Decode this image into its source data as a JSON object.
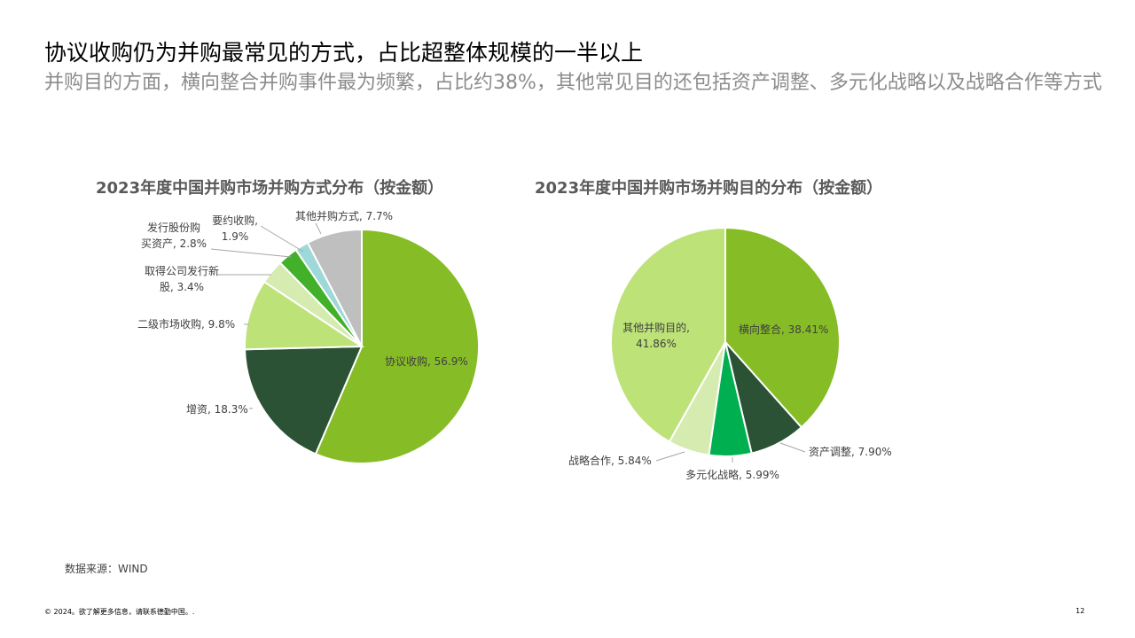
{
  "slide": {
    "title": "协议收购仍为并购最常见的方式，占比超整体规模的一半以上",
    "subtitle": "并购目的方面，横向整合并购事件最为频繁，占比约38%，其他常见目的还包括资产调整、多元化战略以及战略合作等方式",
    "source": "数据来源：WIND",
    "footer": "© 2024。欲了解更多信息，请联系德勤中国。.",
    "page_number": "12"
  },
  "chart_data": [
    {
      "type": "pie",
      "title": "2023年度中国并购市场并购方式分布（按金额）",
      "slices": [
        {
          "label": "协议收购, 56.9%",
          "value": 56.9,
          "color": "#86bc25"
        },
        {
          "label": "增资, 18.3%",
          "value": 18.3,
          "color": "#2b5234"
        },
        {
          "label": "二级市场收购, 9.8%",
          "value": 9.8,
          "color": "#bde278"
        },
        {
          "label": "取得公司发行新股, 3.4%",
          "value": 3.4,
          "color": "#d6ebb0"
        },
        {
          "label": "发行股份购买资产, 2.8%",
          "value": 2.8,
          "color": "#43b02a"
        },
        {
          "label": "要约收购, 1.9%",
          "value": 1.9,
          "color": "#9ed8d8"
        },
        {
          "label": "其他并购方式, 7.7%",
          "value": 7.7,
          "color": "#bfbfbf"
        }
      ]
    },
    {
      "type": "pie",
      "title": "2023年度中国并购市场并购目的分布（按金额）",
      "slices": [
        {
          "label": "横向整合, 38.41%",
          "value": 38.41,
          "color": "#86bc25"
        },
        {
          "label": "资产调整, 7.90%",
          "value": 7.9,
          "color": "#2b5234"
        },
        {
          "label": "多元化战略, 5.99%",
          "value": 5.99,
          "color": "#00b050"
        },
        {
          "label": "战略合作, 5.84%",
          "value": 5.84,
          "color": "#d6ebb0"
        },
        {
          "label": "其他并购目的, 41.86%",
          "value": 41.86,
          "color": "#bde278"
        }
      ]
    }
  ]
}
